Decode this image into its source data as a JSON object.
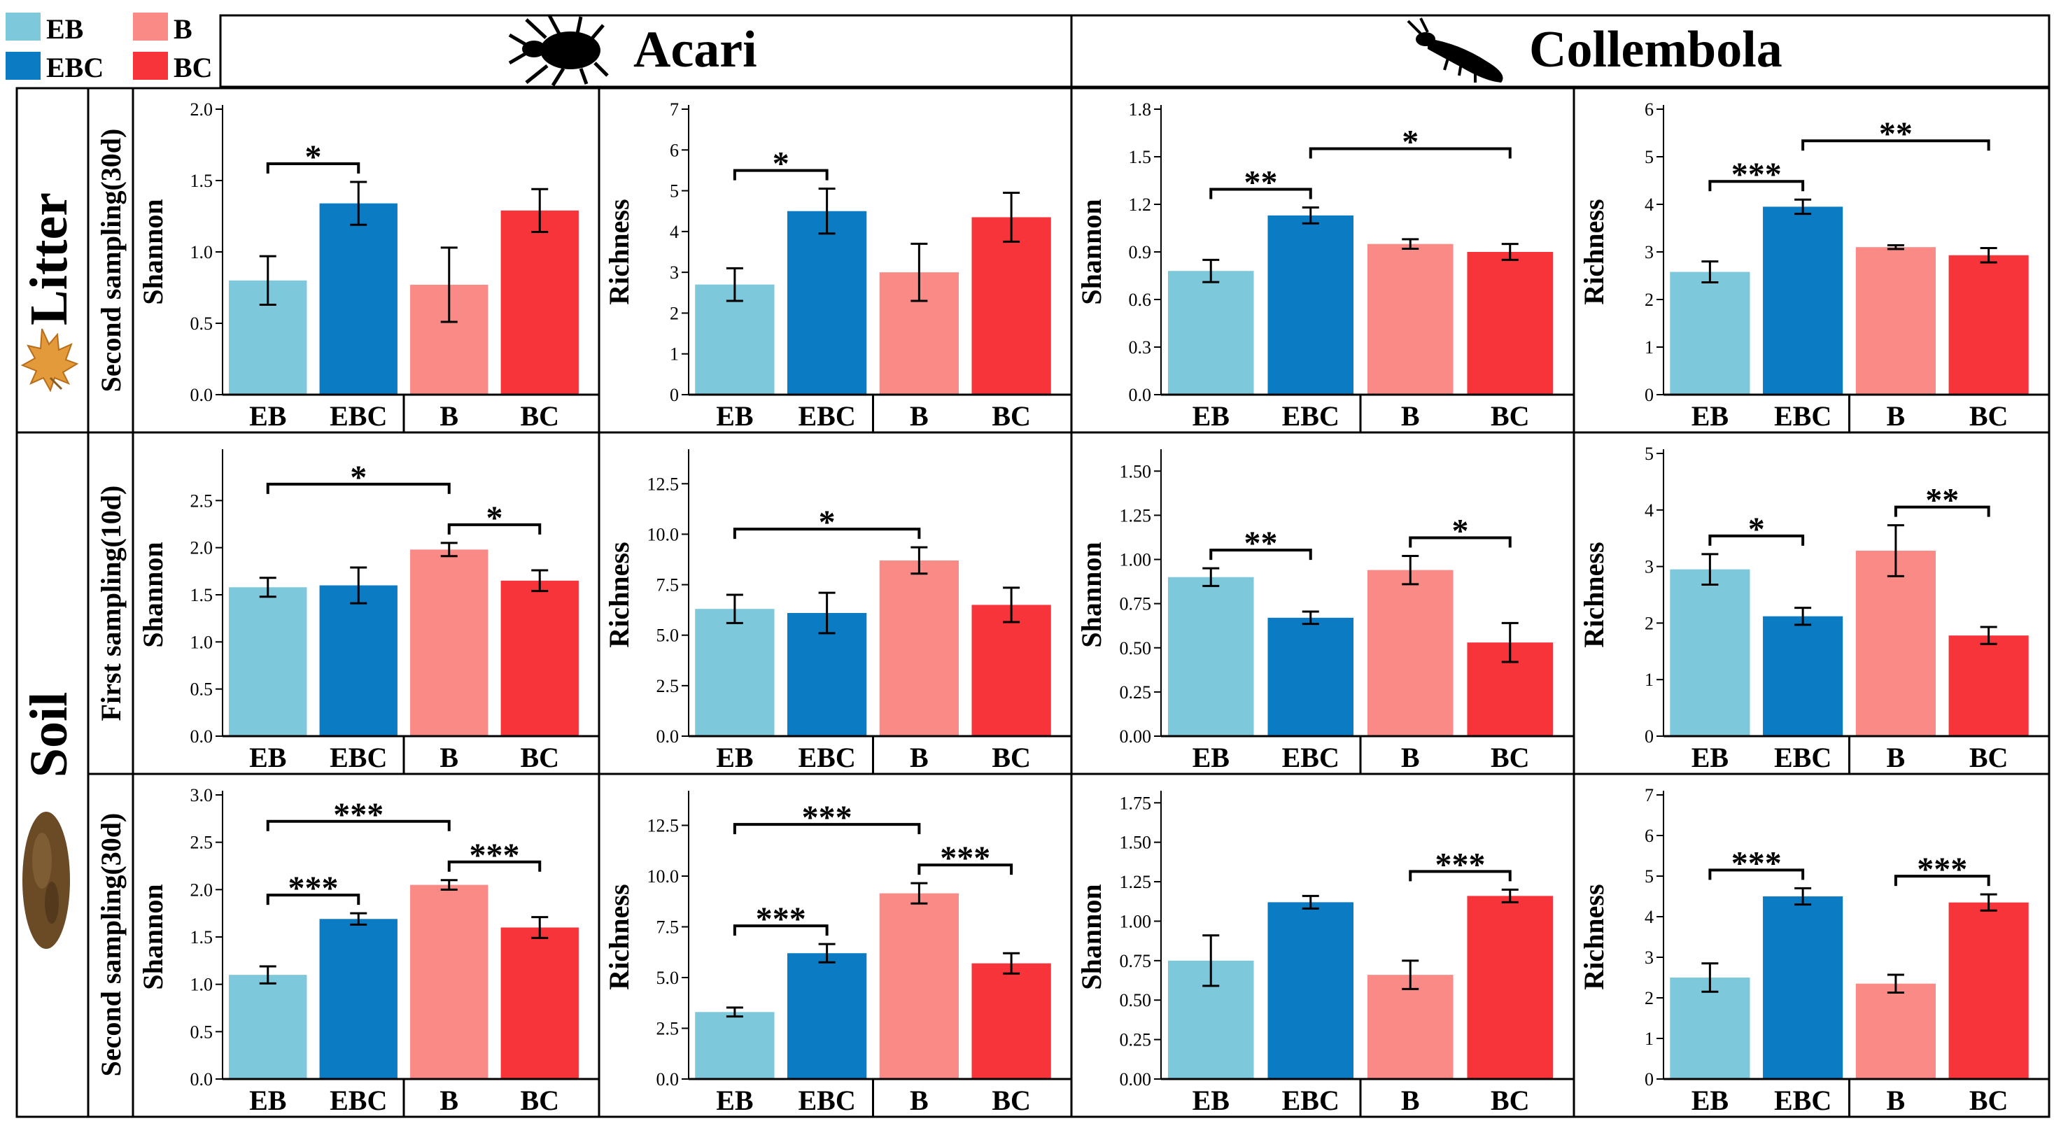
{
  "legend": [
    {
      "label": "EB",
      "color": "#7ec8dc"
    },
    {
      "label": "B",
      "color": "#f98a86"
    },
    {
      "label": "EBC",
      "color": "#0b7bc3"
    },
    {
      "label": "BC",
      "color": "#f7343a"
    }
  ],
  "columns": {
    "acari": "Acari",
    "collembola": "Collembola"
  },
  "rows": {
    "litter": "Litter",
    "soil": "Soil",
    "litter_second": "Second sampling(30d)",
    "soil_first": "First sampling(10d)",
    "soil_second": "Second sampling(30d)"
  },
  "colors": {
    "EB": "#7ec8dc",
    "EBC": "#0b7bc3",
    "B": "#f98a86",
    "BC": "#f7343a"
  },
  "chart_data": [
    {
      "type": "bar",
      "id": "litter-acari-shannon",
      "ylabel": "Shannon",
      "categories": [
        "EB",
        "EBC",
        "B",
        "BC"
      ],
      "values": [
        0.8,
        1.34,
        0.77,
        1.29
      ],
      "errors": [
        0.17,
        0.15,
        0.26,
        0.15
      ],
      "ylim": [
        0,
        2.0
      ],
      "ticks": [
        "0.0",
        "0.5",
        "1.0",
        "1.5",
        "2.0"
      ],
      "sig": [
        {
          "from": 0,
          "to": 1,
          "label": "*"
        }
      ]
    },
    {
      "type": "bar",
      "id": "litter-acari-richness",
      "ylabel": "Richness",
      "categories": [
        "EB",
        "EBC",
        "B",
        "BC"
      ],
      "values": [
        2.7,
        4.5,
        3.0,
        4.35
      ],
      "errors": [
        0.4,
        0.55,
        0.7,
        0.6
      ],
      "ylim": [
        0,
        7
      ],
      "ticks": [
        "0",
        "1",
        "2",
        "3",
        "4",
        "5",
        "6",
        "7"
      ],
      "sig": [
        {
          "from": 0,
          "to": 1,
          "label": "*"
        }
      ]
    },
    {
      "type": "bar",
      "id": "litter-collembola-shannon",
      "ylabel": "Shannon",
      "categories": [
        "EB",
        "EBC",
        "B",
        "BC"
      ],
      "values": [
        0.78,
        1.13,
        0.95,
        0.9
      ],
      "errors": [
        0.07,
        0.05,
        0.03,
        0.05
      ],
      "ylim": [
        0,
        1.8
      ],
      "ticks": [
        "0.0",
        "0.3",
        "0.6",
        "0.9",
        "1.2",
        "1.5",
        "1.8"
      ],
      "sig": [
        {
          "from": 0,
          "to": 1,
          "label": "**"
        },
        {
          "from": 1,
          "to": 3,
          "label": "*"
        }
      ]
    },
    {
      "type": "bar",
      "id": "litter-collembola-richness",
      "ylabel": "Richness",
      "categories": [
        "EB",
        "EBC",
        "B",
        "BC"
      ],
      "values": [
        2.58,
        3.95,
        3.1,
        2.93
      ],
      "errors": [
        0.22,
        0.15,
        0.04,
        0.15
      ],
      "ylim": [
        0,
        6
      ],
      "ticks": [
        "0",
        "1",
        "2",
        "3",
        "4",
        "5",
        "6"
      ],
      "sig": [
        {
          "from": 0,
          "to": 1,
          "label": "***"
        },
        {
          "from": 1,
          "to": 3,
          "label": "**"
        }
      ]
    },
    {
      "type": "bar",
      "id": "soil1-acari-shannon",
      "ylabel": "Shannon",
      "categories": [
        "EB",
        "EBC",
        "B",
        "BC"
      ],
      "values": [
        1.58,
        1.6,
        1.98,
        1.65
      ],
      "errors": [
        0.1,
        0.19,
        0.07,
        0.11
      ],
      "ylim": [
        0,
        3.0
      ],
      "ticks": [
        "0.0",
        "0.5",
        "1.0",
        "1.5",
        "2.0",
        "2.5"
      ],
      "sig": [
        {
          "from": 2,
          "to": 3,
          "label": "*"
        },
        {
          "from": 0,
          "to": 2,
          "label": "*"
        }
      ]
    },
    {
      "type": "bar",
      "id": "soil1-acari-richness",
      "ylabel": "Richness",
      "categories": [
        "EB",
        "EBC",
        "B",
        "BC"
      ],
      "values": [
        6.3,
        6.1,
        8.7,
        6.5
      ],
      "errors": [
        0.7,
        1.0,
        0.65,
        0.85
      ],
      "ylim": [
        0,
        14
      ],
      "ticks": [
        "0.0",
        "2.5",
        "5.0",
        "7.5",
        "10.0",
        "12.5"
      ],
      "sig": [
        {
          "from": 0,
          "to": 2,
          "label": "*"
        }
      ]
    },
    {
      "type": "bar",
      "id": "soil1-collembola-shannon",
      "ylabel": "Shannon",
      "categories": [
        "EB",
        "EBC",
        "B",
        "BC"
      ],
      "values": [
        0.9,
        0.67,
        0.94,
        0.53
      ],
      "errors": [
        0.05,
        0.035,
        0.08,
        0.11
      ],
      "ylim": [
        0,
        1.6
      ],
      "ticks": [
        "0.00",
        "0.25",
        "0.50",
        "0.75",
        "1.00",
        "1.25",
        "1.50"
      ],
      "sig": [
        {
          "from": 0,
          "to": 1,
          "label": "**"
        },
        {
          "from": 2,
          "to": 3,
          "label": "*"
        }
      ]
    },
    {
      "type": "bar",
      "id": "soil1-collembola-richness",
      "ylabel": "Richness",
      "categories": [
        "EB",
        "EBC",
        "B",
        "BC"
      ],
      "values": [
        2.95,
        2.12,
        3.28,
        1.78
      ],
      "errors": [
        0.27,
        0.15,
        0.45,
        0.15
      ],
      "ylim": [
        0,
        5
      ],
      "ticks": [
        "0",
        "1",
        "2",
        "3",
        "4",
        "5"
      ],
      "sig": [
        {
          "from": 0,
          "to": 1,
          "label": "*"
        },
        {
          "from": 2,
          "to": 3,
          "label": "**"
        }
      ]
    },
    {
      "type": "bar",
      "id": "soil2-acari-shannon",
      "ylabel": "Shannon",
      "categories": [
        "EB",
        "EBC",
        "B",
        "BC"
      ],
      "values": [
        1.1,
        1.69,
        2.05,
        1.6
      ],
      "errors": [
        0.09,
        0.06,
        0.05,
        0.11
      ],
      "ylim": [
        0,
        3.0
      ],
      "ticks": [
        "0.0",
        "0.5",
        "1.0",
        "1.5",
        "2.0",
        "2.5",
        "3.0"
      ],
      "sig": [
        {
          "from": 0,
          "to": 1,
          "label": "***"
        },
        {
          "from": 2,
          "to": 3,
          "label": "***"
        },
        {
          "from": 0,
          "to": 2,
          "label": "***"
        }
      ]
    },
    {
      "type": "bar",
      "id": "soil2-acari-richness",
      "ylabel": "Richness",
      "categories": [
        "EB",
        "EBC",
        "B",
        "BC"
      ],
      "values": [
        3.3,
        6.2,
        9.15,
        5.7
      ],
      "errors": [
        0.22,
        0.45,
        0.5,
        0.5
      ],
      "ylim": [
        0,
        14
      ],
      "ticks": [
        "0.0",
        "2.5",
        "5.0",
        "7.5",
        "10.0",
        "12.5"
      ],
      "sig": [
        {
          "from": 0,
          "to": 1,
          "label": "***"
        },
        {
          "from": 2,
          "to": 3,
          "label": "***"
        },
        {
          "from": 0,
          "to": 2,
          "label": "***"
        }
      ]
    },
    {
      "type": "bar",
      "id": "soil2-collembola-shannon",
      "ylabel": "Shannon",
      "categories": [
        "EB",
        "EBC",
        "B",
        "BC"
      ],
      "values": [
        0.75,
        1.12,
        0.66,
        1.16
      ],
      "errors": [
        0.16,
        0.04,
        0.09,
        0.04
      ],
      "ylim": [
        0,
        1.8
      ],
      "ticks": [
        "0.00",
        "0.25",
        "0.50",
        "0.75",
        "1.00",
        "1.25",
        "1.50",
        "1.75"
      ],
      "sig": [
        {
          "from": 2,
          "to": 3,
          "label": "***"
        }
      ]
    },
    {
      "type": "bar",
      "id": "soil2-collembola-richness",
      "ylabel": "Richness",
      "categories": [
        "EB",
        "EBC",
        "B",
        "BC"
      ],
      "values": [
        2.5,
        4.5,
        2.35,
        4.35
      ],
      "errors": [
        0.35,
        0.2,
        0.22,
        0.2
      ],
      "ylim": [
        0,
        7
      ],
      "ticks": [
        "0",
        "1",
        "2",
        "3",
        "4",
        "5",
        "6",
        "7"
      ],
      "sig": [
        {
          "from": 0,
          "to": 1,
          "label": "***"
        },
        {
          "from": 2,
          "to": 3,
          "label": "***"
        }
      ]
    }
  ]
}
